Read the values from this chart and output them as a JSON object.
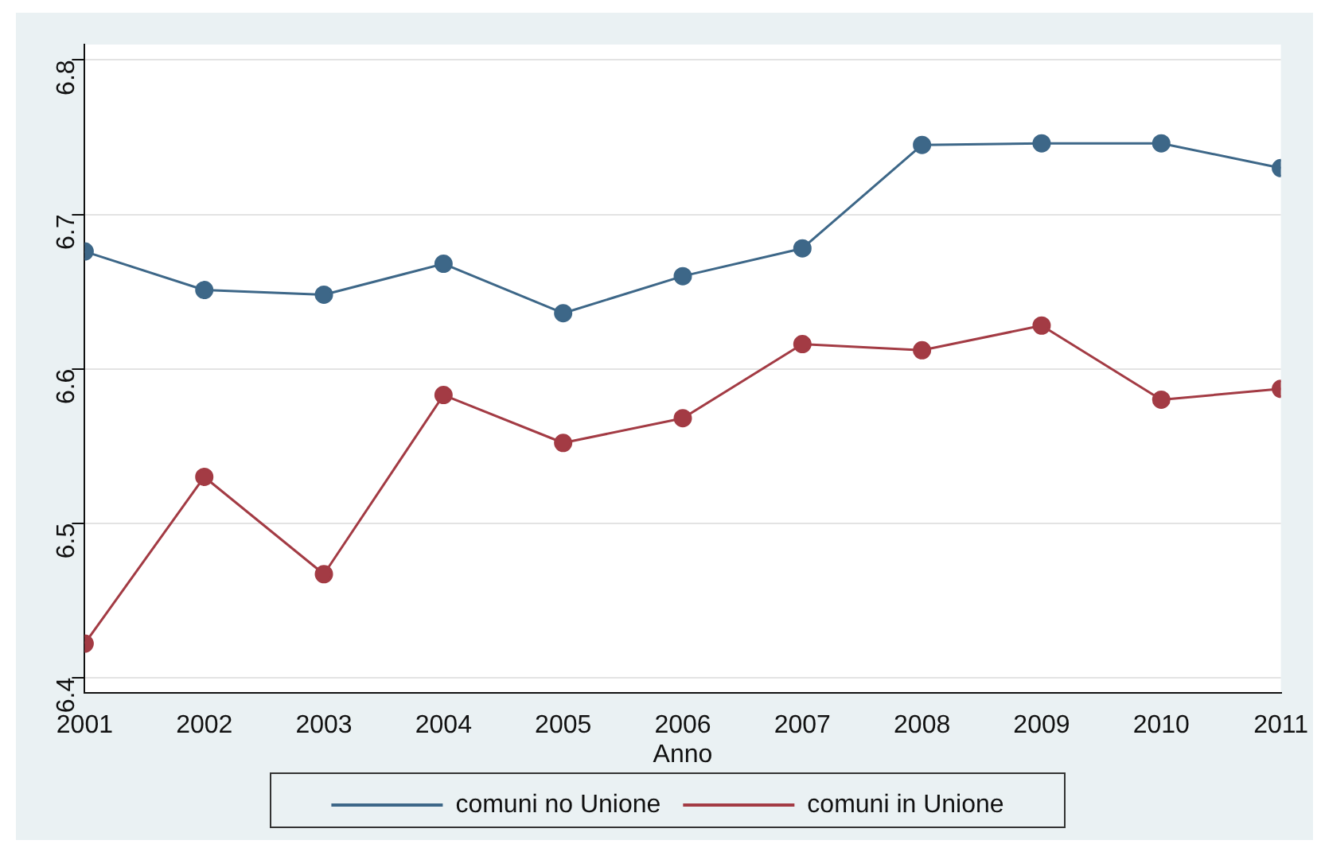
{
  "chart_data": {
    "type": "line",
    "xlabel": "Anno",
    "x": [
      2001,
      2002,
      2003,
      2004,
      2005,
      2006,
      2007,
      2008,
      2009,
      2010,
      2011
    ],
    "series": [
      {
        "name": "comuni no Unione",
        "color": "#3d6788",
        "values": [
          6.676,
          6.651,
          6.648,
          6.668,
          6.636,
          6.66,
          6.678,
          6.745,
          6.746,
          6.746,
          6.73
        ]
      },
      {
        "name": "comuni in Unione",
        "color": "#a33b44",
        "values": [
          6.422,
          6.53,
          6.467,
          6.583,
          6.552,
          6.568,
          6.616,
          6.612,
          6.628,
          6.58,
          6.587
        ]
      }
    ],
    "xlim": [
      2001,
      2011
    ],
    "xticks": [
      2001,
      2002,
      2003,
      2004,
      2005,
      2006,
      2007,
      2008,
      2009,
      2010,
      2011
    ],
    "ylim": [
      6.39,
      6.81
    ],
    "yticks": [
      6.4,
      6.5,
      6.6,
      6.7,
      6.8
    ],
    "grid": "y",
    "legend": "bottom",
    "marker": "circle",
    "line_style": "solid"
  }
}
